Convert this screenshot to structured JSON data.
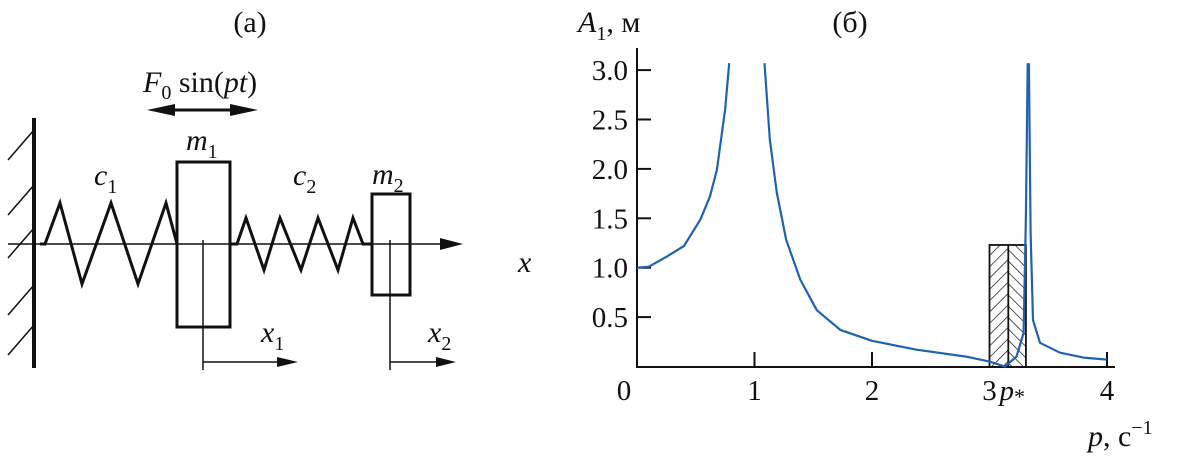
{
  "panel_a": {
    "label": "(a)",
    "force_label": {
      "main": "F",
      "sub": "0",
      "rest": " sin(",
      "var": "pt",
      "close": ")"
    },
    "mass1": {
      "main": "m",
      "sub": "1"
    },
    "mass2": {
      "main": "m",
      "sub": "2"
    },
    "spring1": {
      "main": "c",
      "sub": "1"
    },
    "spring2": {
      "main": "c",
      "sub": "2"
    },
    "axis_label": "x",
    "disp1": {
      "main": "x",
      "sub": "1"
    },
    "disp2": {
      "main": "x",
      "sub": "2"
    }
  },
  "panel_b": {
    "label": "(б)"
  },
  "chart_data": {
    "type": "line",
    "title": "(б)",
    "ylabel": {
      "main": "A",
      "sub": "1",
      "rest": ", м"
    },
    "xlabel": {
      "main": "p",
      "rest": ", с",
      "sup": "−1"
    },
    "xlim": [
      0,
      4
    ],
    "ylim": [
      0,
      3.2
    ],
    "x_ticks": [
      "0",
      "1",
      "2",
      "3",
      "4"
    ],
    "y_ticks": [
      "0.5",
      "1.0",
      "1.5",
      "2.0",
      "2.5",
      "3.0"
    ],
    "x_tick_values": [
      0,
      1,
      2,
      3,
      4
    ],
    "y_tick_values": [
      0.5,
      1.0,
      1.5,
      2.0,
      2.5,
      3.0
    ],
    "special_tick": {
      "label": "p",
      "sub": "*",
      "value": 3.16
    },
    "grid": false,
    "line_color": "#1f63b0",
    "series": [
      {
        "segments": [
          [
            [
              0,
              1.0
            ],
            [
              0.1,
              1.01
            ],
            [
              0.25,
              1.11
            ],
            [
              0.4,
              1.22
            ],
            [
              0.54,
              1.49
            ],
            [
              0.62,
              1.72
            ],
            [
              0.68,
              1.99
            ],
            [
              0.75,
              2.6
            ],
            [
              0.785,
              3.07
            ]
          ],
          [
            [
              1.085,
              3.07
            ],
            [
              1.13,
              2.3
            ],
            [
              1.19,
              1.76
            ],
            [
              1.27,
              1.28
            ],
            [
              1.39,
              0.88
            ],
            [
              1.53,
              0.57
            ],
            [
              1.73,
              0.37
            ],
            [
              2.0,
              0.26
            ],
            [
              2.38,
              0.17
            ],
            [
              2.8,
              0.1
            ],
            [
              3.0,
              0.05
            ],
            [
              3.13,
              0.0
            ],
            [
              3.23,
              0.1
            ],
            [
              3.29,
              0.34
            ],
            [
              3.31,
              1.52
            ],
            [
              3.325,
              3.07
            ]
          ],
          [
            [
              3.335,
              3.07
            ],
            [
              3.35,
              1.35
            ],
            [
              3.37,
              0.47
            ],
            [
              3.43,
              0.24
            ],
            [
              3.6,
              0.14
            ],
            [
              3.8,
              0.09
            ],
            [
              4.0,
              0.07
            ]
          ]
        ]
      }
    ],
    "hatched_region": {
      "x": [
        3.0,
        3.31
      ],
      "height": 1.23,
      "divider": 3.16
    }
  }
}
